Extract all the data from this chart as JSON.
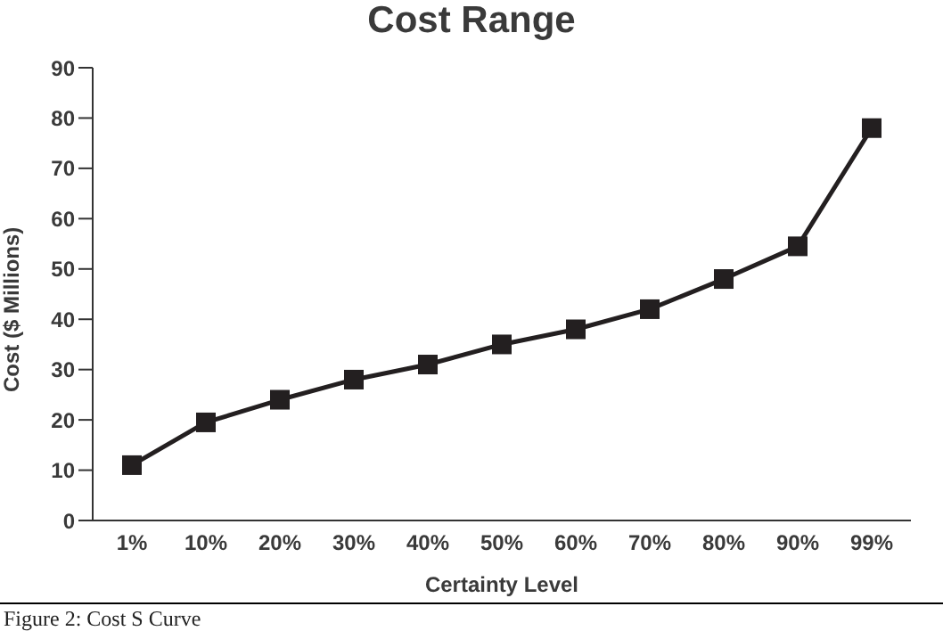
{
  "chart_data": {
    "type": "line",
    "title": "Cost Range",
    "xlabel": "Certainty Level",
    "ylabel": "Cost ($ Millions)",
    "categories": [
      "1%",
      "10%",
      "20%",
      "30%",
      "40%",
      "50%",
      "60%",
      "70%",
      "80%",
      "90%",
      "99%"
    ],
    "series": [
      {
        "color": "#231f20",
        "values": [
          11,
          19.5,
          24,
          28,
          31,
          35,
          38,
          42,
          48,
          54.5,
          78
        ]
      }
    ],
    "ylim": [
      0,
      90
    ],
    "yticks": [
      0,
      10,
      20,
      30,
      40,
      50,
      60,
      70,
      80,
      90
    ],
    "grid": false,
    "legend": false,
    "marker": "square",
    "line_style": "solid",
    "annotations": [
      "Figure 2: Cost S Curve"
    ]
  }
}
